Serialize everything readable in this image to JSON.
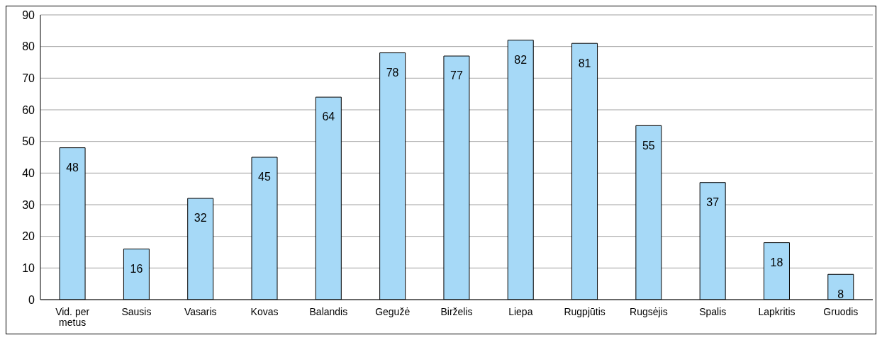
{
  "chart_data": {
    "type": "bar",
    "categories": [
      "Vid. per metus",
      "Sausis",
      "Vasaris",
      "Kovas",
      "Balandis",
      "Gegužė",
      "Birželis",
      "Liepa",
      "Rugpjūtis",
      "Rugsėjis",
      "Spalis",
      "Lapkritis",
      "Gruodis"
    ],
    "values": [
      48,
      16,
      32,
      45,
      64,
      78,
      77,
      82,
      81,
      55,
      37,
      18,
      8
    ],
    "color": "#a6d9f7",
    "ylim": [
      0,
      90
    ],
    "yticks": [
      0,
      10,
      20,
      30,
      40,
      50,
      60,
      70,
      80,
      90
    ],
    "grid": "y",
    "data_labels": true
  }
}
